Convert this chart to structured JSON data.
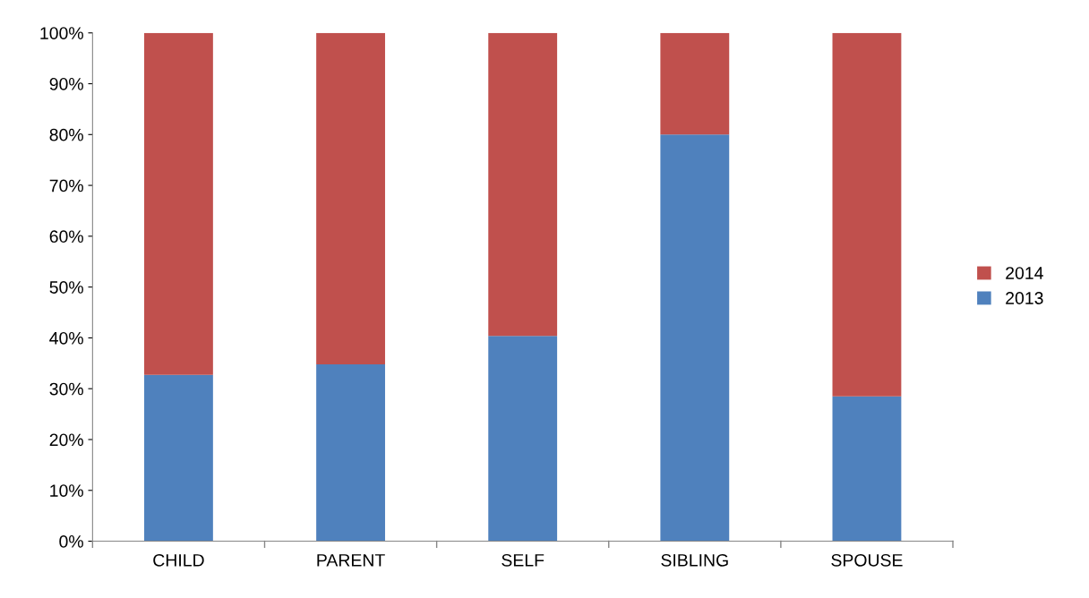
{
  "chart_data": {
    "type": "bar",
    "stacked": true,
    "categories": [
      "CHILD",
      "PARENT",
      "SELF",
      "SIBLING",
      "SPOUSE"
    ],
    "series": [
      {
        "name": "2013",
        "color": "#4f81bd",
        "values": [
          32.7,
          34.8,
          40.4,
          80,
          28.5
        ]
      },
      {
        "name": "2014",
        "color": "#c0504d",
        "values": [
          67.3,
          65.2,
          59.6,
          20,
          71.5
        ]
      }
    ],
    "ylim": [
      0,
      100
    ],
    "yticks": [
      {
        "value": 0,
        "label": "0%"
      },
      {
        "value": 10,
        "label": "10%"
      },
      {
        "value": 20,
        "label": "20%"
      },
      {
        "value": 30,
        "label": "30%"
      },
      {
        "value": 40,
        "label": "40%"
      },
      {
        "value": 50,
        "label": "50%"
      },
      {
        "value": 60,
        "label": "60%"
      },
      {
        "value": 70,
        "label": "70%"
      },
      {
        "value": 80,
        "label": "80%"
      },
      {
        "value": 90,
        "label": "90%"
      },
      {
        "value": 100,
        "label": "100%"
      }
    ],
    "grid": false,
    "legend": "right"
  }
}
